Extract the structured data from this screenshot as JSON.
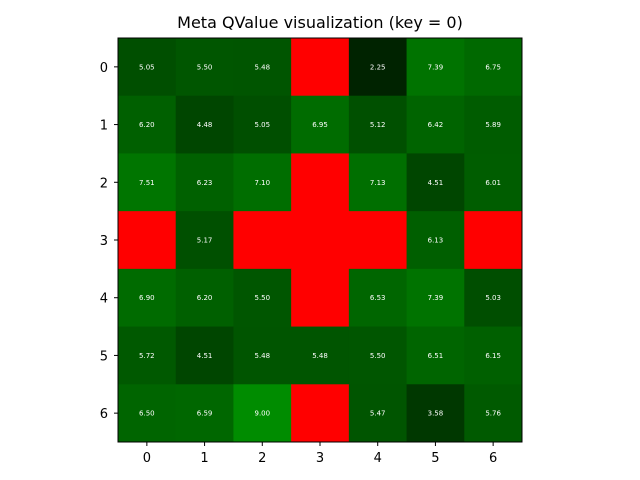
{
  "chart_data": {
    "type": "heatmap",
    "title": "Meta QValue visualization (key = 0)",
    "xlabel": "",
    "ylabel": "",
    "x_categories": [
      "0",
      "1",
      "2",
      "3",
      "4",
      "5",
      "6"
    ],
    "y_categories": [
      "0",
      "1",
      "2",
      "3",
      "4",
      "5",
      "6"
    ],
    "values": [
      [
        5.05,
        5.5,
        5.48,
        null,
        2.25,
        7.39,
        6.75
      ],
      [
        6.2,
        4.48,
        5.05,
        6.95,
        5.12,
        6.42,
        5.89
      ],
      [
        7.51,
        6.23,
        7.1,
        null,
        7.13,
        4.51,
        6.01
      ],
      [
        null,
        5.17,
        null,
        null,
        null,
        6.13,
        null
      ],
      [
        6.9,
        6.2,
        5.5,
        null,
        6.53,
        7.39,
        5.03
      ],
      [
        5.72,
        4.51,
        5.48,
        5.48,
        5.5,
        6.51,
        6.15
      ],
      [
        6.5,
        6.59,
        9.0,
        null,
        5.47,
        3.58,
        5.76
      ]
    ],
    "labels": [
      [
        "5.05",
        "5.50",
        "5.48",
        "",
        "2.25",
        "7.39",
        "6.75"
      ],
      [
        "6.20",
        "4.48",
        "5.05",
        "6.95",
        "5.12",
        "6.42",
        "5.89"
      ],
      [
        "7.51",
        "6.23",
        "7.10",
        "",
        "7.13",
        "4.51",
        "6.01"
      ],
      [
        "",
        "5.17",
        "",
        "",
        "",
        "6.13",
        ""
      ],
      [
        "6.90",
        "6.20",
        "5.50",
        "",
        "6.53",
        "7.39",
        "5.03"
      ],
      [
        "5.72",
        "4.51",
        "5.48",
        "5.48",
        "5.50",
        "6.51",
        "6.15"
      ],
      [
        "6.50",
        "6.59",
        "9.00",
        "",
        "5.47",
        "3.58",
        "5.76"
      ]
    ],
    "wall_color": "#ff0000",
    "colormap": "black-to-green",
    "value_range": [
      0,
      9
    ],
    "grid": false
  }
}
